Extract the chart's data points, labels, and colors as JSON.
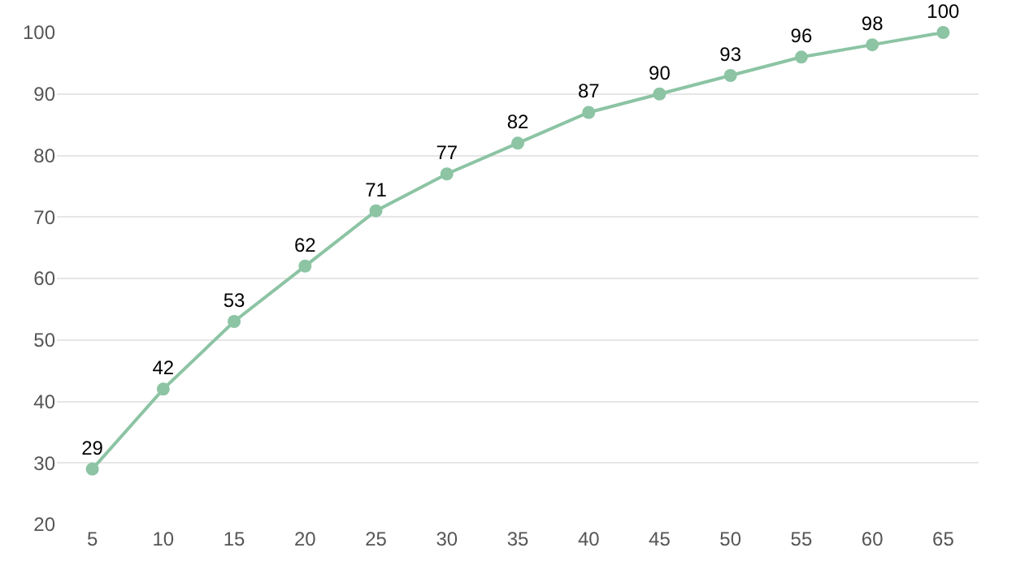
{
  "chart_data": {
    "type": "line",
    "categories": [
      "5",
      "10",
      "15",
      "20",
      "25",
      "30",
      "35",
      "40",
      "45",
      "50",
      "55",
      "60",
      "65"
    ],
    "series": [
      {
        "color": "#8cc4a4",
        "values": [
          29,
          42,
          53,
          62,
          71,
          77,
          82,
          87,
          90,
          93,
          96,
          98,
          100
        ]
      }
    ],
    "ylim": [
      20,
      100
    ],
    "yticks": [
      20,
      30,
      40,
      50,
      60,
      70,
      80,
      90,
      100
    ],
    "grid": "y",
    "marker": "circle",
    "line_style": "solid",
    "data_labels": true
  }
}
